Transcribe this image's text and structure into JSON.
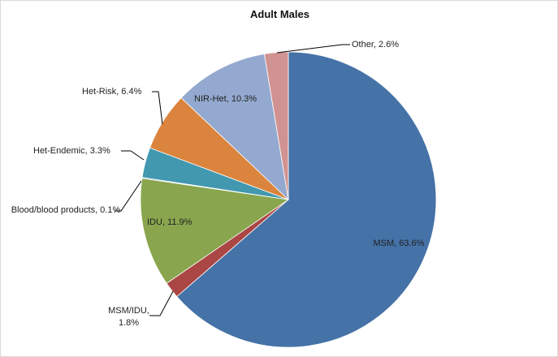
{
  "chart_data": {
    "type": "pie",
    "title": "Adult Males",
    "values": [
      63.6,
      1.8,
      11.9,
      0.1,
      3.3,
      6.4,
      10.3,
      2.6
    ],
    "value_labels": [
      "MSM, 63.6%",
      "MSM/IDU, 1.8%",
      "IDU, 11.9%",
      "Blood/blood products, 0.1%",
      "Het-Endemic, 3.3%",
      "Het-Risk, 6.4%",
      "NIR-Het, 10.3%",
      "Other, 2.6%"
    ],
    "colors": [
      "#4572a7",
      "#aa4643",
      "#89a54e",
      "#71588f",
      "#4198af",
      "#db843d",
      "#93a9cf",
      "#d19392"
    ]
  }
}
